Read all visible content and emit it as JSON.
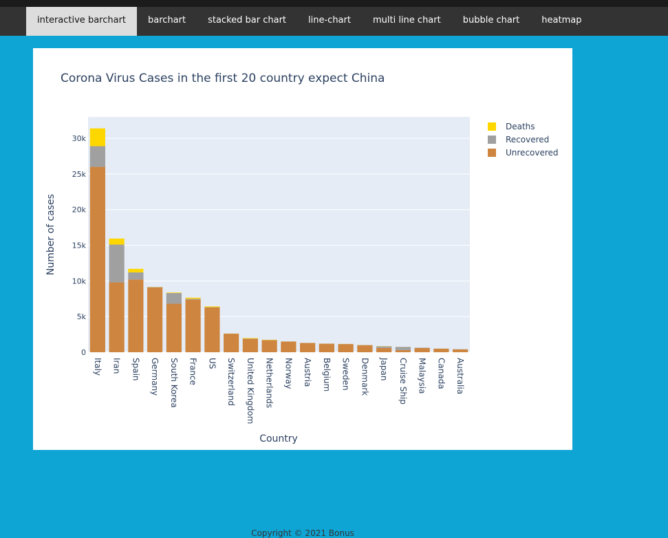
{
  "nav": {
    "tabs": [
      {
        "label": "interactive barchart",
        "active": true
      },
      {
        "label": "barchart",
        "active": false
      },
      {
        "label": "stacked bar chart",
        "active": false
      },
      {
        "label": "line-chart",
        "active": false
      },
      {
        "label": "multi line chart",
        "active": false
      },
      {
        "label": "bubble chart",
        "active": false
      },
      {
        "label": "heatmap",
        "active": false
      }
    ]
  },
  "footer": {
    "text": "Copyright © 2021 Bonus"
  },
  "chart_data": {
    "type": "bar",
    "stacked": true,
    "title": "Corona Virus Cases in the first 20 country expect China",
    "xlabel": "Country",
    "ylabel": "Number of cases",
    "ylim": [
      0,
      33000
    ],
    "yticks": [
      0,
      5000,
      10000,
      15000,
      20000,
      25000,
      30000
    ],
    "ytick_labels": [
      "0",
      "5k",
      "10k",
      "15k",
      "20k",
      "25k",
      "30k"
    ],
    "grid": true,
    "legend_position": "top-right",
    "categories": [
      "Italy",
      "Iran",
      "Spain",
      "Germany",
      "South Korea",
      "France",
      "US",
      "Switzerland",
      "United Kingdom",
      "Netherlands",
      "Norway",
      "Austria",
      "Belgium",
      "Sweden",
      "Denmark",
      "Japan",
      "Cruise Ship",
      "Malaysia",
      "Canada",
      "Australia"
    ],
    "series": [
      {
        "name": "Unrecovered",
        "color": "#cd853f",
        "values": [
          26000,
          9800,
          10200,
          9100,
          6800,
          7400,
          6300,
          2600,
          1900,
          1700,
          1500,
          1300,
          1200,
          1150,
          1000,
          600,
          300,
          600,
          500,
          400
        ]
      },
      {
        "name": "Recovered",
        "color": "#a0a0a0",
        "values": [
          2900,
          5300,
          1000,
          50,
          1500,
          100,
          20,
          10,
          20,
          10,
          5,
          5,
          5,
          5,
          5,
          230,
          450,
          40,
          10,
          30
        ]
      },
      {
        "name": "Deaths",
        "color": "#ffd700",
        "values": [
          2500,
          850,
          500,
          20,
          75,
          150,
          110,
          15,
          70,
          40,
          5,
          5,
          5,
          10,
          5,
          30,
          10,
          5,
          5,
          5
        ]
      }
    ]
  }
}
